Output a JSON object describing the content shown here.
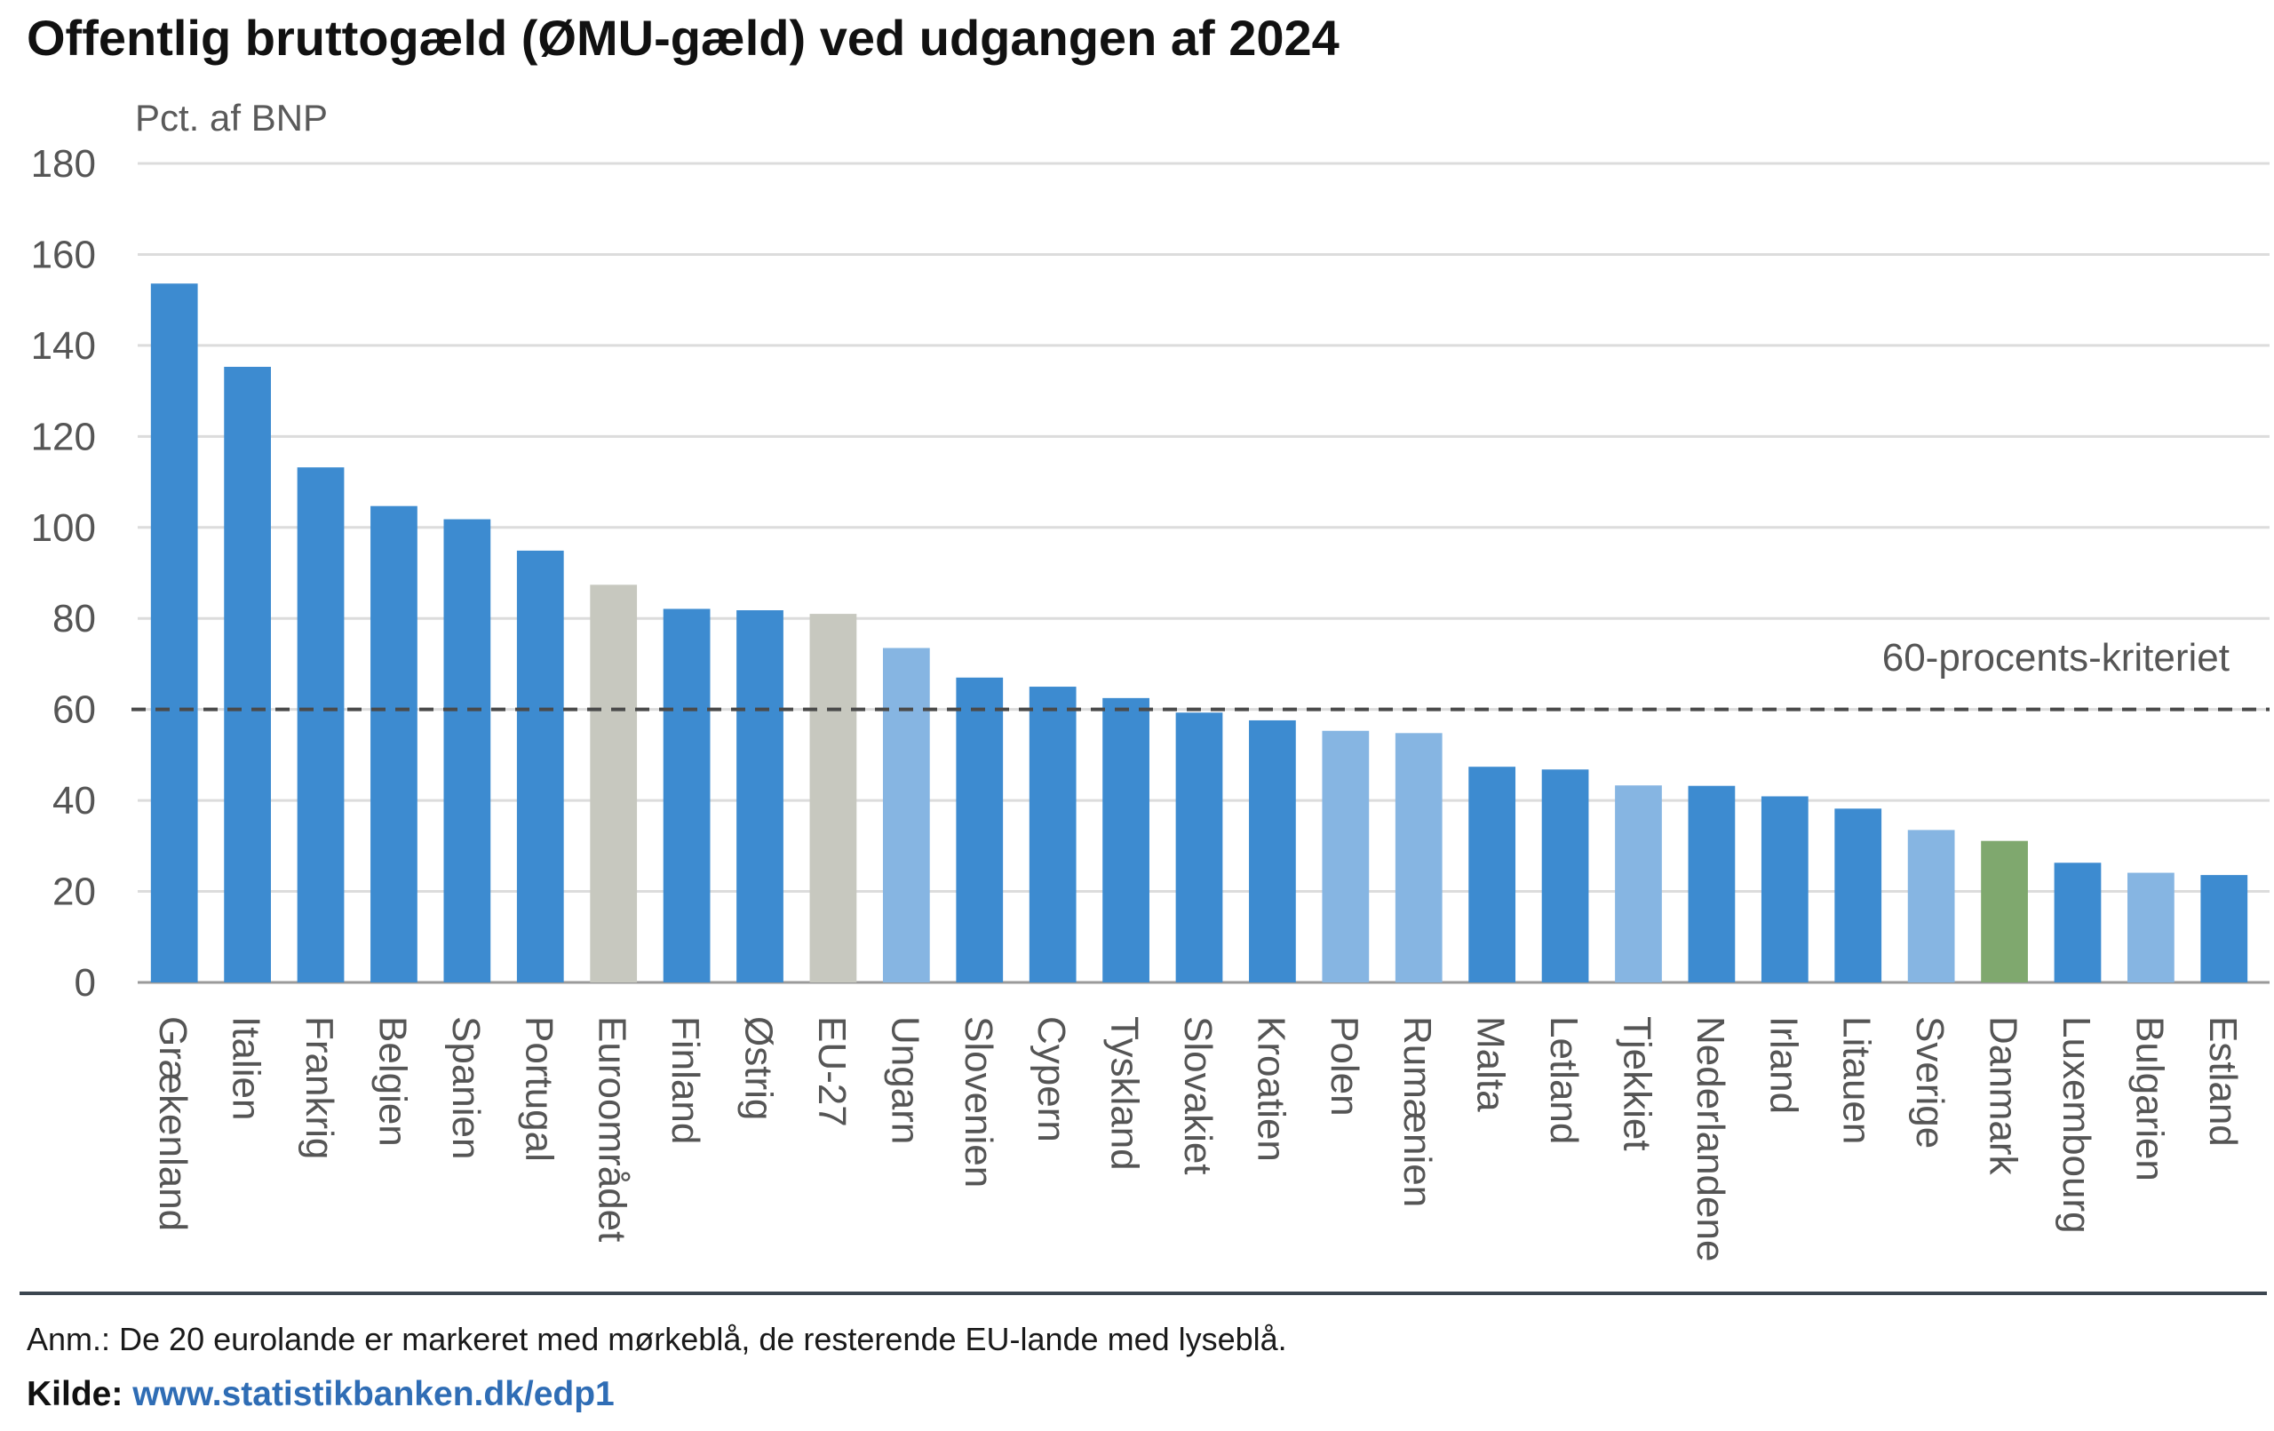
{
  "chart_data": {
    "type": "bar",
    "title": "Offentlig bruttogæld (ØMU-gæld) ved udgangen af 2024",
    "ylabel": "Pct. af BNP",
    "xlabel": "",
    "ylim": [
      0,
      180
    ],
    "yticks": [
      "0",
      "20",
      "40",
      "60",
      "80",
      "100",
      "120",
      "140",
      "160",
      "180"
    ],
    "grid": true,
    "categories": [
      "Grækenland",
      "Italien",
      "Frankrig",
      "Belgien",
      "Spanien",
      "Portugal",
      "Euroområdet",
      "Finland",
      "Østrig",
      "EU-27",
      "Ungarn",
      "Slovenien",
      "Cypern",
      "Tyskland",
      "Slovakiet",
      "Kroatien",
      "Polen",
      "Rumænien",
      "Malta",
      "Letland",
      "Tjekkiet",
      "Nederlandene",
      "Irland",
      "Litauen",
      "Sverige",
      "Danmark",
      "Luxembourg",
      "Bulgarien",
      "Estland"
    ],
    "values": [
      153.6,
      135.3,
      113.2,
      104.7,
      101.8,
      94.9,
      87.4,
      82.1,
      81.8,
      81.0,
      73.5,
      67.0,
      65.0,
      62.5,
      59.3,
      57.6,
      55.3,
      54.8,
      47.4,
      46.8,
      43.3,
      43.2,
      40.9,
      38.2,
      33.5,
      31.1,
      26.3,
      24.1,
      23.6
    ],
    "groups": [
      "euro",
      "euro",
      "euro",
      "euro",
      "euro",
      "euro",
      "aggregate",
      "euro",
      "euro",
      "aggregate",
      "other",
      "euro",
      "euro",
      "euro",
      "euro",
      "euro",
      "other",
      "other",
      "euro",
      "euro",
      "other",
      "euro",
      "euro",
      "euro",
      "other",
      "denmark",
      "euro",
      "other",
      "euro"
    ],
    "group_colors": {
      "euro": "#3d8bd0",
      "other": "#86b5e2",
      "aggregate": "#c7c8bf",
      "denmark": "#7fa86e"
    },
    "reference_line": {
      "value": 60,
      "label": "60-procents-kriteriet",
      "style": "dashed",
      "color": "#4a4a4a"
    },
    "gridline_color": "#dcdcdc",
    "axis_color": "#9a9a9a"
  },
  "footer": {
    "note": "Anm.: De 20 eurolande er markeret med mørkeblå, de resterende EU-lande med lyseblå.",
    "source_label": "Kilde:",
    "source_link": "www.statistikbanken.dk/edp1"
  }
}
